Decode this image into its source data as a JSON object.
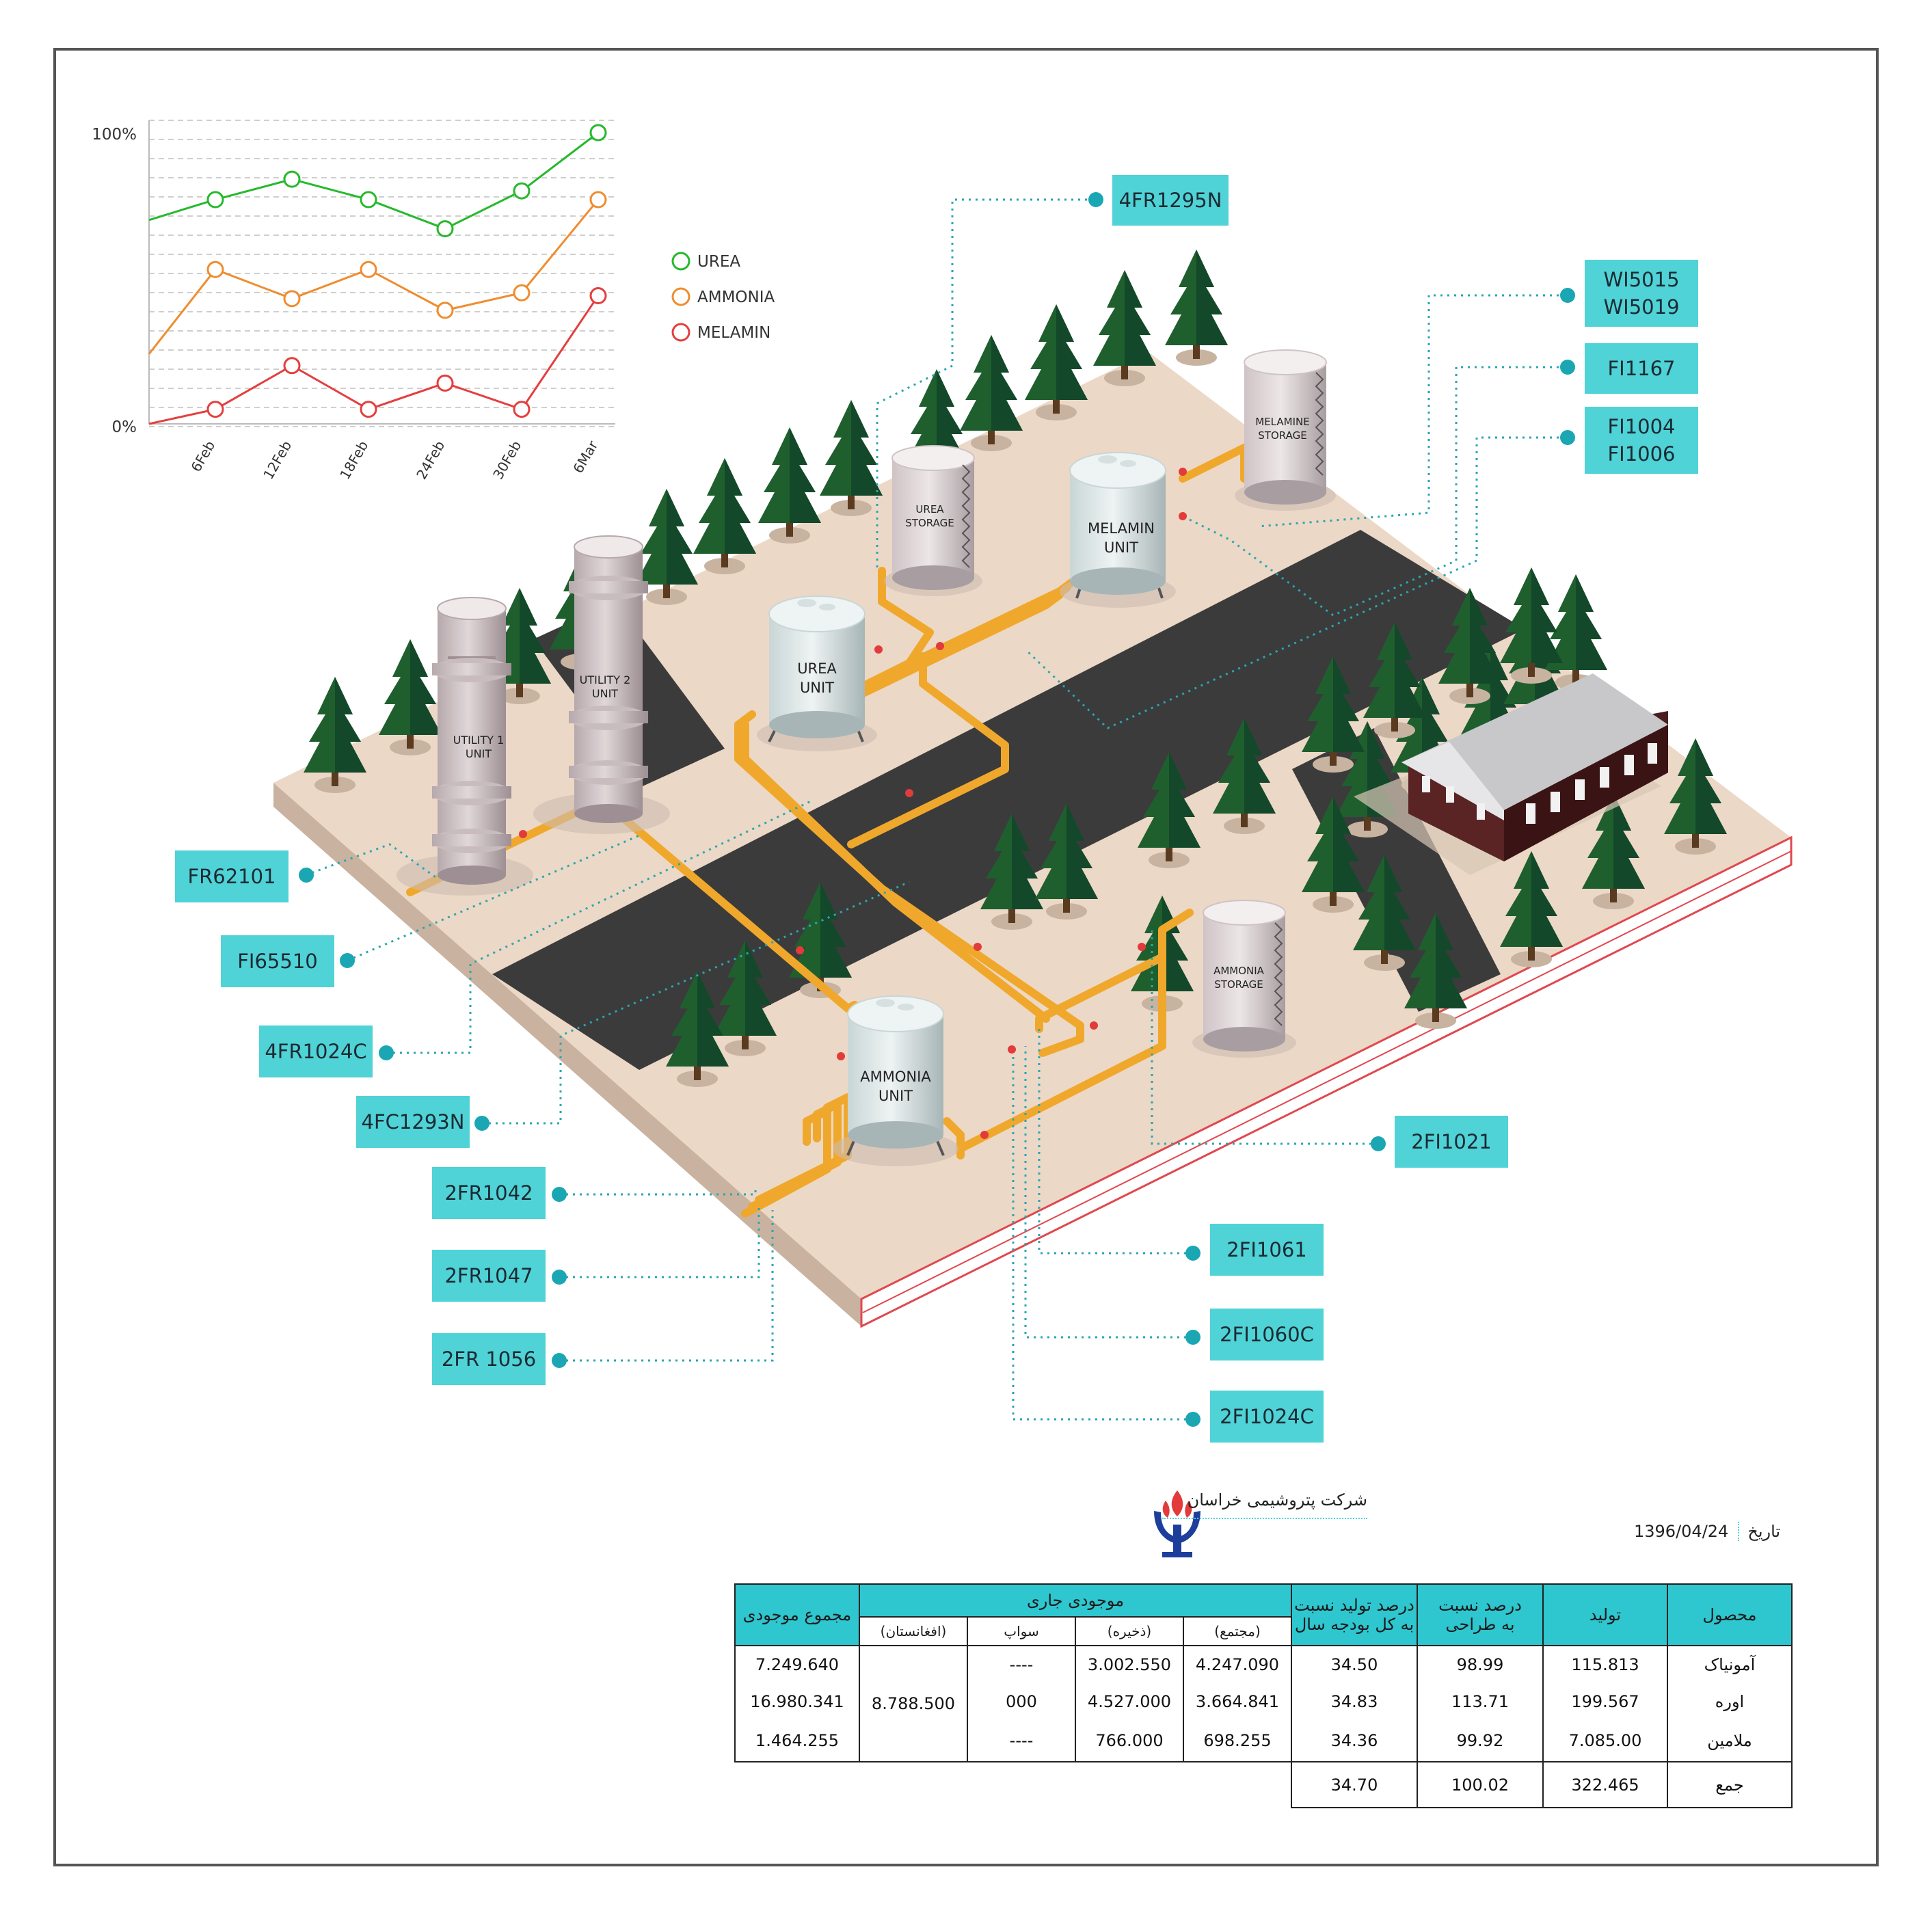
{
  "chart_data": {
    "type": "line",
    "x": [
      "6Feb",
      "12Feb",
      "18Feb",
      "24Feb",
      "30Feb",
      "6Mar"
    ],
    "y_tick_labels": [
      "100%",
      "0%"
    ],
    "ylim": [
      0,
      100
    ],
    "series": [
      {
        "name": "UREA",
        "color": "#27b92d",
        "start": 70,
        "values": [
          77,
          84,
          77,
          67,
          80,
          100
        ]
      },
      {
        "name": "AMMONIA",
        "color": "#ef8d2f",
        "start": 24,
        "values": [
          53,
          43,
          53,
          39,
          45,
          77
        ]
      },
      {
        "name": "MELAMIN",
        "color": "#e43f3f",
        "start": 0,
        "values": [
          5,
          20,
          5,
          14,
          5,
          44
        ]
      }
    ]
  },
  "plant": {
    "labels": {
      "urea_storage": [
        "UREA",
        "STORAGE"
      ],
      "melamine_storage": [
        "MELAMINE",
        "STORAGE"
      ],
      "melamin_unit": [
        "MELAMIN",
        "UNIT"
      ],
      "urea_unit": [
        "UREA",
        "UNIT"
      ],
      "utility1": [
        "UTILITY 1",
        "UNIT"
      ],
      "utility2": [
        "UTILITY 2",
        "UNIT"
      ],
      "ammonia_unit": [
        "AMMONIA",
        "UNIT"
      ],
      "ammonia_storage": [
        "AMMONIA",
        "STORAGE"
      ]
    },
    "tags": {
      "t_4FR1295N": [
        "4FR1295N"
      ],
      "t_WI5015": [
        "WI5015",
        "WI5019"
      ],
      "t_FI1167": [
        "FI1167"
      ],
      "t_FI1004": [
        "FI1004",
        "FI1006"
      ],
      "t_FR62101": [
        "FR62101"
      ],
      "t_FI65510": [
        "FI65510"
      ],
      "t_4FR1024C": [
        "4FR1024C"
      ],
      "t_4FC1293N": [
        "4FC1293N"
      ],
      "t_2FR1042": [
        "2FR1042"
      ],
      "t_2FR1047": [
        "2FR1047"
      ],
      "t_2FR1056": [
        "2FR 1056"
      ],
      "t_2FI1021": [
        "2FI1021"
      ],
      "t_2FI1061": [
        "2FI1061"
      ],
      "t_2FI1060C": [
        "2FI1060C"
      ],
      "t_2FI1024C": [
        "2FI1024C"
      ]
    }
  },
  "footer": {
    "company": "شرکت پتروشیمی خراسان",
    "date_label": "تاریخ",
    "date_value": "1396/04/24"
  },
  "table": {
    "headers": {
      "product": "محصول",
      "production": "تولید",
      "design_pct": [
        "درصد نسبت",
        "به طراحی"
      ],
      "budget_pct": [
        "درصد تولید نسبت",
        "به کل بودجه سال"
      ],
      "current_stock": "موجودی جاری",
      "total_stock": "مجموع موجودی",
      "sub_complex": "(مجتمع)",
      "sub_reserve": "(ذخیره)",
      "sub_port": "سواپ",
      "sub_afghan": "(افغانستان)"
    },
    "rows": [
      {
        "product": "آمونیاک",
        "production": "115.813",
        "design": "98.99",
        "budget": "34.50",
        "complex": "4.247.090",
        "reserve": "3.002.550",
        "swap": "----",
        "total": "7.249.640"
      },
      {
        "product": "اوره",
        "production": "199.567",
        "design": "113.71",
        "budget": "34.83",
        "complex": "3.664.841",
        "reserve": "4.527.000",
        "swap": "000",
        "total": "16.980.341"
      },
      {
        "product": "ملامین",
        "production": "7.085.00",
        "design": "99.92",
        "budget": "34.36",
        "complex": "698.255",
        "reserve": "766.000",
        "swap": "----",
        "total": "1.464.255"
      }
    ],
    "afghan_value": "8.788.500",
    "sum": {
      "label": "جمع",
      "production": "322.465",
      "design": "100.02",
      "budget": "34.70"
    }
  }
}
